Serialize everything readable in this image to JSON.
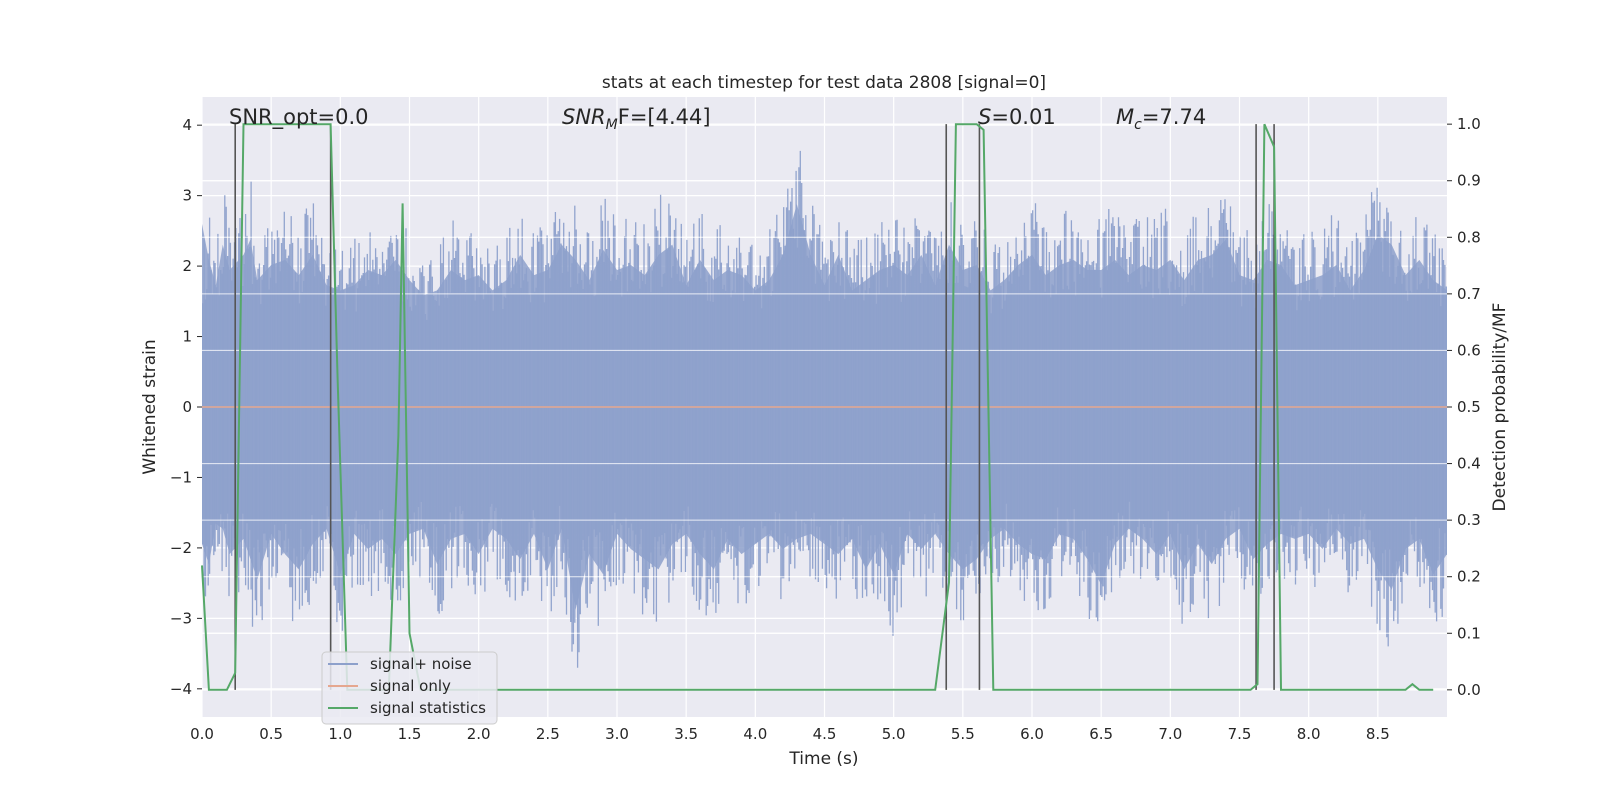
{
  "chart_data": {
    "type": "line",
    "title": "stats at each timestep for test data 2808 [signal=0]",
    "xlabel": "Time (s)",
    "ylabel": "Whitened strain",
    "y2label": "Detection probability/MF",
    "xlim": [
      0.0,
      9.0
    ],
    "ylim": [
      -4.4,
      4.4
    ],
    "y2lim": [
      -0.048,
      1.048
    ],
    "xticks": [
      "0.0",
      "0.5",
      "1.0",
      "1.5",
      "2.0",
      "2.5",
      "3.0",
      "3.5",
      "4.0",
      "4.5",
      "5.0",
      "5.5",
      "6.0",
      "6.5",
      "7.0",
      "7.5",
      "8.0",
      "8.5"
    ],
    "xtick_values": [
      0.0,
      0.5,
      1.0,
      1.5,
      2.0,
      2.5,
      3.0,
      3.5,
      4.0,
      4.5,
      5.0,
      5.5,
      6.0,
      6.5,
      7.0,
      7.5,
      8.0,
      8.5
    ],
    "yticks": [
      "−4",
      "−3",
      "−2",
      "−1",
      "0",
      "1",
      "2",
      "3",
      "4"
    ],
    "ytick_values": [
      -4,
      -3,
      -2,
      -1,
      0,
      1,
      2,
      3,
      4
    ],
    "y2ticks": [
      "0.0",
      "0.1",
      "0.2",
      "0.3",
      "0.4",
      "0.5",
      "0.6",
      "0.7",
      "0.8",
      "0.9",
      "1.0"
    ],
    "y2tick_values": [
      0.0,
      0.1,
      0.2,
      0.3,
      0.4,
      0.5,
      0.6,
      0.7,
      0.8,
      0.9,
      1.0
    ],
    "annotations": {
      "snr_opt": "SNR_opt=0.0",
      "snr_mf_symbol": "SNR",
      "snr_mf_sub": "M",
      "snr_mf_rest": "F=[4.44]",
      "s_symbol": "S",
      "s_rest": "=0.01",
      "mc_symbol": "M",
      "mc_sub": "c",
      "mc_rest": "=7.74"
    },
    "series": [
      {
        "name": "signal+ noise",
        "color": "#8da0cb",
        "envelope": {
          "x": [
            0.0,
            0.05,
            0.1,
            0.15,
            0.2,
            0.3,
            0.35,
            0.4,
            0.5,
            0.6,
            0.7,
            0.8,
            0.9,
            1.0,
            1.1,
            1.2,
            1.3,
            1.4,
            1.5,
            1.6,
            1.7,
            1.8,
            1.9,
            2.0,
            2.1,
            2.2,
            2.3,
            2.4,
            2.5,
            2.6,
            2.7,
            2.8,
            2.9,
            3.0,
            3.1,
            3.2,
            3.3,
            3.4,
            3.5,
            3.6,
            3.7,
            3.8,
            3.9,
            4.0,
            4.1,
            4.2,
            4.3,
            4.4,
            4.5,
            4.6,
            4.7,
            4.8,
            4.9,
            5.0,
            5.1,
            5.2,
            5.3,
            5.4,
            5.5,
            5.6,
            5.7,
            5.8,
            5.9,
            6.0,
            6.1,
            6.2,
            6.3,
            6.4,
            6.5,
            6.6,
            6.7,
            6.8,
            6.9,
            7.0,
            7.1,
            7.2,
            7.3,
            7.4,
            7.5,
            7.6,
            7.7,
            7.8,
            7.9,
            8.0,
            8.1,
            8.2,
            8.3,
            8.4,
            8.5,
            8.6,
            8.7,
            8.8,
            8.9,
            9.0
          ],
          "upper": [
            2.6,
            2.9,
            2.4,
            3.2,
            2.7,
            3.0,
            3.3,
            2.5,
            2.8,
            2.9,
            2.6,
            3.0,
            2.4,
            2.3,
            2.4,
            2.7,
            2.6,
            2.9,
            2.5,
            2.2,
            2.3,
            2.7,
            2.5,
            2.6,
            2.3,
            2.5,
            3.0,
            2.6,
            2.7,
            3.2,
            2.9,
            2.5,
            3.1,
            2.7,
            2.8,
            2.6,
            3.0,
            3.2,
            2.4,
            2.9,
            2.5,
            2.7,
            2.6,
            2.3,
            2.5,
            3.0,
            4.0,
            3.0,
            2.4,
            3.0,
            2.3,
            2.5,
            2.7,
            2.8,
            2.6,
            3.0,
            2.4,
            3.2,
            2.7,
            2.8,
            2.3,
            2.5,
            2.8,
            3.0,
            2.6,
            2.8,
            2.9,
            2.7,
            2.7,
            2.9,
            2.6,
            2.8,
            2.7,
            2.9,
            2.5,
            2.9,
            3.0,
            3.3,
            2.6,
            2.5,
            2.9,
            2.8,
            2.4,
            2.5,
            2.6,
            2.8,
            2.3,
            2.7,
            3.4,
            3.2,
            2.6,
            2.9,
            2.5,
            2.3
          ],
          "lower": [
            -2.7,
            -3.1,
            -2.3,
            -2.4,
            -2.9,
            -2.6,
            -3.0,
            -3.4,
            -2.5,
            -2.9,
            -3.2,
            -2.7,
            -2.4,
            -3.3,
            -2.5,
            -2.8,
            -2.6,
            -2.9,
            -2.5,
            -2.4,
            -3.1,
            -2.6,
            -2.5,
            -2.9,
            -2.4,
            -2.6,
            -3.0,
            -2.5,
            -3.2,
            -2.4,
            -4.0,
            -2.9,
            -3.3,
            -2.5,
            -2.8,
            -3.0,
            -3.2,
            -2.7,
            -2.5,
            -2.9,
            -3.2,
            -2.6,
            -2.9,
            -2.7,
            -2.5,
            -2.8,
            -2.6,
            -2.5,
            -2.7,
            -2.9,
            -2.6,
            -3.2,
            -2.7,
            -3.3,
            -2.5,
            -2.8,
            -2.5,
            -2.9,
            -3.2,
            -3.0,
            -2.6,
            -2.4,
            -2.7,
            -2.9,
            -3.0,
            -2.5,
            -2.6,
            -3.0,
            -3.5,
            -2.7,
            -2.4,
            -2.6,
            -2.9,
            -2.5,
            -3.2,
            -2.7,
            -3.1,
            -2.6,
            -2.4,
            -3.0,
            -2.7,
            -2.5,
            -2.6,
            -2.5,
            -2.8,
            -2.4,
            -2.7,
            -2.6,
            -3.2,
            -3.6,
            -2.8,
            -2.6,
            -3.3,
            -2.9
          ]
        }
      },
      {
        "name": "signal only",
        "color": "#e5a78f",
        "x": [
          0.0,
          9.0
        ],
        "y": [
          0.0,
          0.0
        ]
      },
      {
        "name": "signal statistics",
        "color": "#55a868",
        "x": [
          0.0,
          0.05,
          0.18,
          0.24,
          0.3,
          0.5,
          0.7,
          0.93,
          0.98,
          1.05,
          1.2,
          1.35,
          1.42,
          1.45,
          1.5,
          1.58,
          1.7,
          2.0,
          3.0,
          4.0,
          5.0,
          5.3,
          5.4,
          5.45,
          5.55,
          5.6,
          5.65,
          5.72,
          6.0,
          7.0,
          7.58,
          7.63,
          7.68,
          7.75,
          7.8,
          8.0,
          8.5,
          8.7,
          8.75,
          8.8,
          8.9
        ],
        "y": [
          0.22,
          0.0,
          0.0,
          0.03,
          1.0,
          1.0,
          1.0,
          1.0,
          0.55,
          0.0,
          0.0,
          0.0,
          0.45,
          0.86,
          0.1,
          0.0,
          0.0,
          0.0,
          0.0,
          0.0,
          0.0,
          0.0,
          0.19,
          1.0,
          1.0,
          1.0,
          0.99,
          0.0,
          0.0,
          0.0,
          0.0,
          0.01,
          1.0,
          0.96,
          0.0,
          0.0,
          0.0,
          0.0,
          0.01,
          0.0,
          0.0
        ]
      }
    ],
    "vertical_markers": {
      "color": "#555555",
      "x": [
        0.24,
        0.93,
        5.38,
        5.62,
        7.62,
        7.75
      ],
      "ymin": 0.0,
      "ymax": 1.0
    },
    "legend": {
      "location": "lower-left",
      "entries": [
        "signal+ noise",
        "signal only",
        "signal statistics"
      ]
    },
    "grid": true,
    "colors": {
      "plot_background": "#eaeaf2",
      "grid": "#ffffff",
      "text": "#262626"
    }
  }
}
